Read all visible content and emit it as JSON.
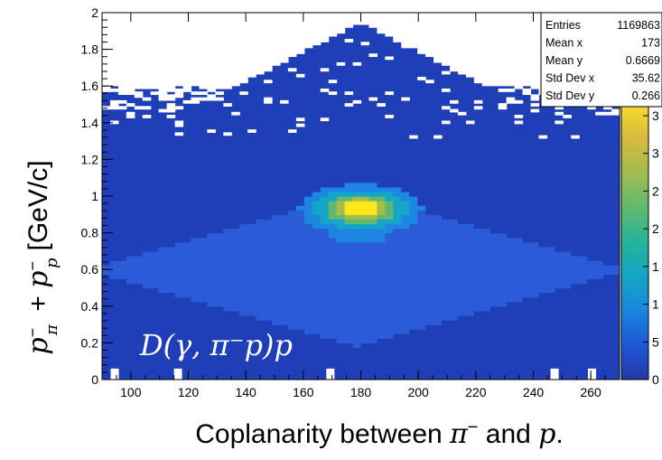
{
  "chart_data": {
    "type": "heatmap",
    "xlabel": "Coplanarity between π⁻ and p.",
    "ylabel": "p⁻π + p⁻p [GeV/c]",
    "overlay_label": "D(γ, π⁻p)p",
    "xlim": [
      90,
      270
    ],
    "ylim": [
      0,
      2
    ],
    "x_ticks": [
      "100",
      "120",
      "140",
      "160",
      "180",
      "200",
      "220",
      "240",
      "260"
    ],
    "x_tick_values": [
      100,
      120,
      140,
      160,
      180,
      200,
      220,
      240,
      260
    ],
    "y_ticks": [
      "0",
      "0.2",
      "0.4",
      "0.6",
      "0.8",
      "1",
      "1.2",
      "1.4",
      "1.6",
      "1.8",
      "2"
    ],
    "y_tick_values": [
      0,
      0.2,
      0.4,
      0.6,
      0.8,
      1,
      1.2,
      1.4,
      1.6,
      1.8,
      2
    ],
    "colorbar_labels": [
      "0",
      "5",
      "1",
      "1",
      "2",
      "2",
      "3",
      "3"
    ],
    "peak": {
      "x": 180,
      "y": 0.93
    },
    "stats_box": [
      {
        "key": "Entries",
        "value": "1169863"
      },
      {
        "key": "Mean x",
        "value": "173"
      },
      {
        "key": "Mean y",
        "value": "0.6669"
      },
      {
        "key": "Std Dev x",
        "value": "35.62"
      },
      {
        "key": "Std Dev y",
        "value": "0.266"
      }
    ],
    "colors": {
      "background_fill": "#1f3fb8",
      "palette": [
        "#1f3fb8",
        "#2a5cd8",
        "#1c86e0",
        "#14a6c8",
        "#2ab39a",
        "#63b86e",
        "#a6bd4e",
        "#dcb93c",
        "#fbe61c"
      ]
    }
  }
}
